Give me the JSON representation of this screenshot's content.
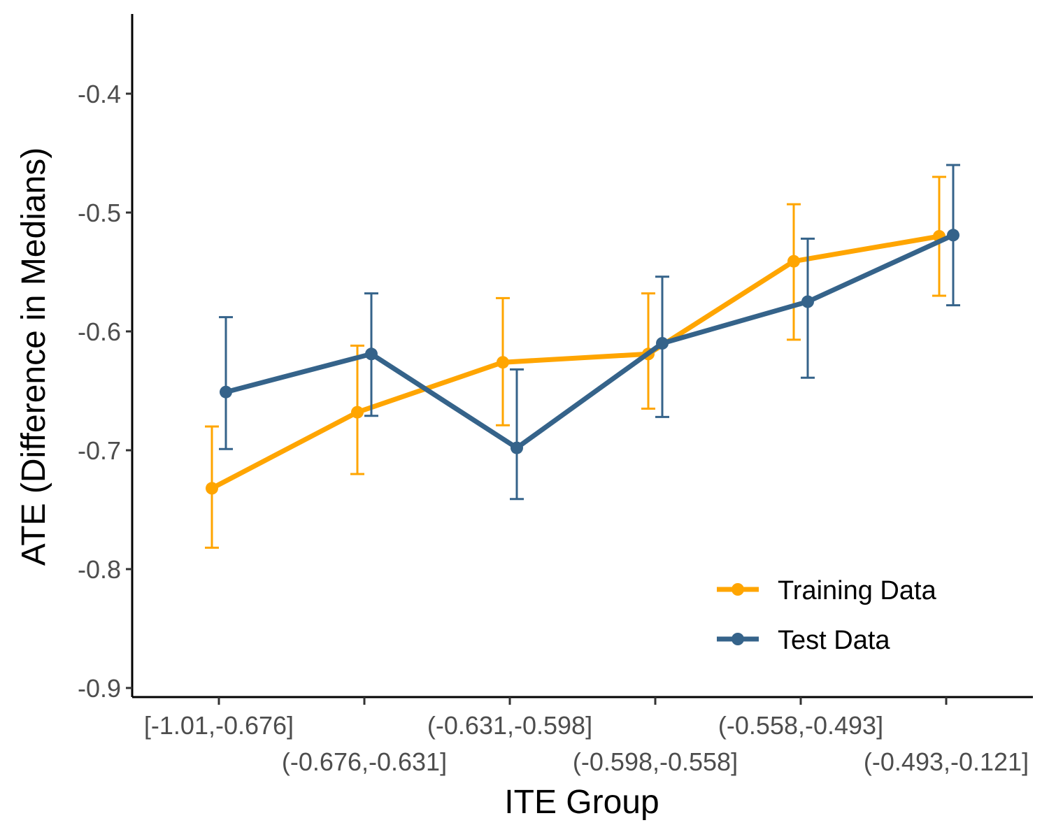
{
  "chart_data": {
    "type": "line",
    "xlabel": "ITE Group",
    "ylabel": "ATE (Difference in Medians)",
    "categories": [
      "[-1.01,-0.676]",
      "(-0.676,-0.631]",
      "(-0.631,-0.598]",
      "(-0.598,-0.558]",
      "(-0.558,-0.493]",
      "(-0.493,-0.121]"
    ],
    "ylim": [
      -0.905,
      -0.335
    ],
    "yticks": [
      -0.9,
      -0.8,
      -0.7,
      -0.6,
      -0.5,
      -0.4
    ],
    "ytick_labels": [
      "-0.9",
      "-0.8",
      "-0.7",
      "-0.6",
      "-0.5",
      "-0.4"
    ],
    "grid": false,
    "legend_position": "bottom-right",
    "series": [
      {
        "name": "Training Data",
        "color": "#FFA500",
        "values": [
          -0.732,
          -0.668,
          -0.626,
          -0.619,
          -0.541,
          -0.52
        ],
        "lower": [
          -0.782,
          -0.72,
          -0.679,
          -0.665,
          -0.607,
          -0.57
        ],
        "upper": [
          -0.68,
          -0.612,
          -0.572,
          -0.568,
          -0.493,
          -0.47
        ]
      },
      {
        "name": "Test Data",
        "color": "#35638A",
        "values": [
          -0.651,
          -0.619,
          -0.698,
          -0.61,
          -0.575,
          -0.519
        ],
        "lower": [
          -0.699,
          -0.671,
          -0.741,
          -0.672,
          -0.639,
          -0.578
        ],
        "upper": [
          -0.588,
          -0.568,
          -0.632,
          -0.554,
          -0.522,
          -0.46
        ]
      }
    ]
  }
}
